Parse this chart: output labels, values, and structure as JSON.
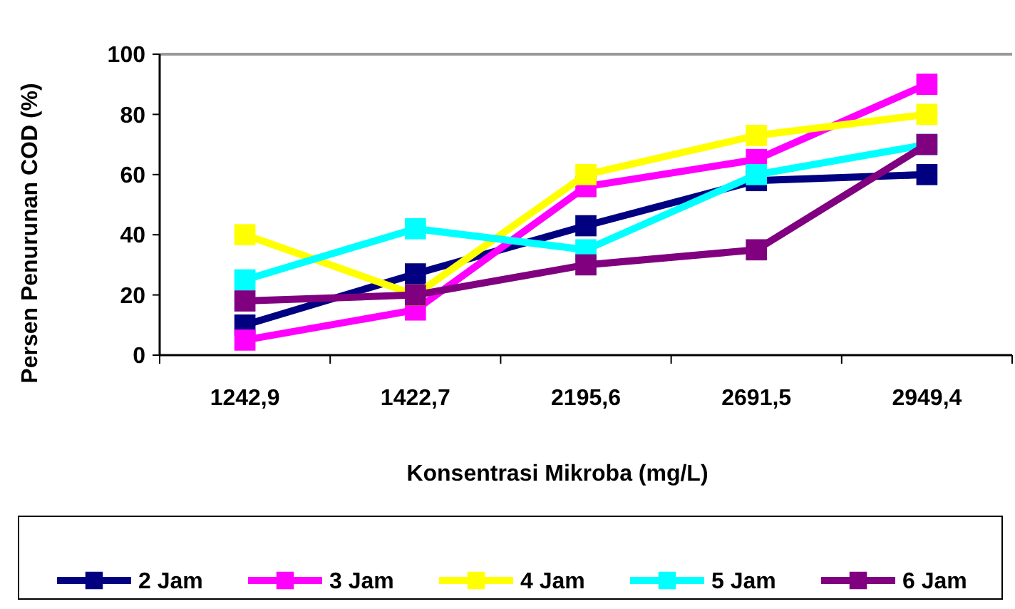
{
  "chart_data": {
    "type": "line",
    "xlabel": "Konsentrasi Mikroba  (mg/L)",
    "ylabel": "Persen Penurunan COD (%)",
    "categories": [
      "1242,9",
      "1422,7",
      "2195,6",
      "2691,5",
      "2949,4"
    ],
    "series": [
      {
        "name": "2 Jam",
        "color": "#000080",
        "values": [
          10,
          27,
          43,
          58,
          60
        ]
      },
      {
        "name": "3 Jam",
        "color": "#ff00ff",
        "values": [
          5,
          15,
          56,
          65,
          90
        ]
      },
      {
        "name": "4 Jam",
        "color": "#ffff00",
        "values": [
          40,
          20,
          60,
          73,
          80
        ]
      },
      {
        "name": "5 Jam",
        "color": "#00ffff",
        "values": [
          25,
          42,
          35,
          60,
          70
        ]
      },
      {
        "name": "6 Jam",
        "color": "#800080",
        "values": [
          18,
          20,
          30,
          35,
          70
        ]
      }
    ],
    "ylim": [
      0,
      100
    ],
    "yticks": [
      0,
      20,
      40,
      60,
      80,
      100
    ],
    "grid": false,
    "legend": "bottom",
    "marker": "square",
    "line_style": "solid"
  }
}
